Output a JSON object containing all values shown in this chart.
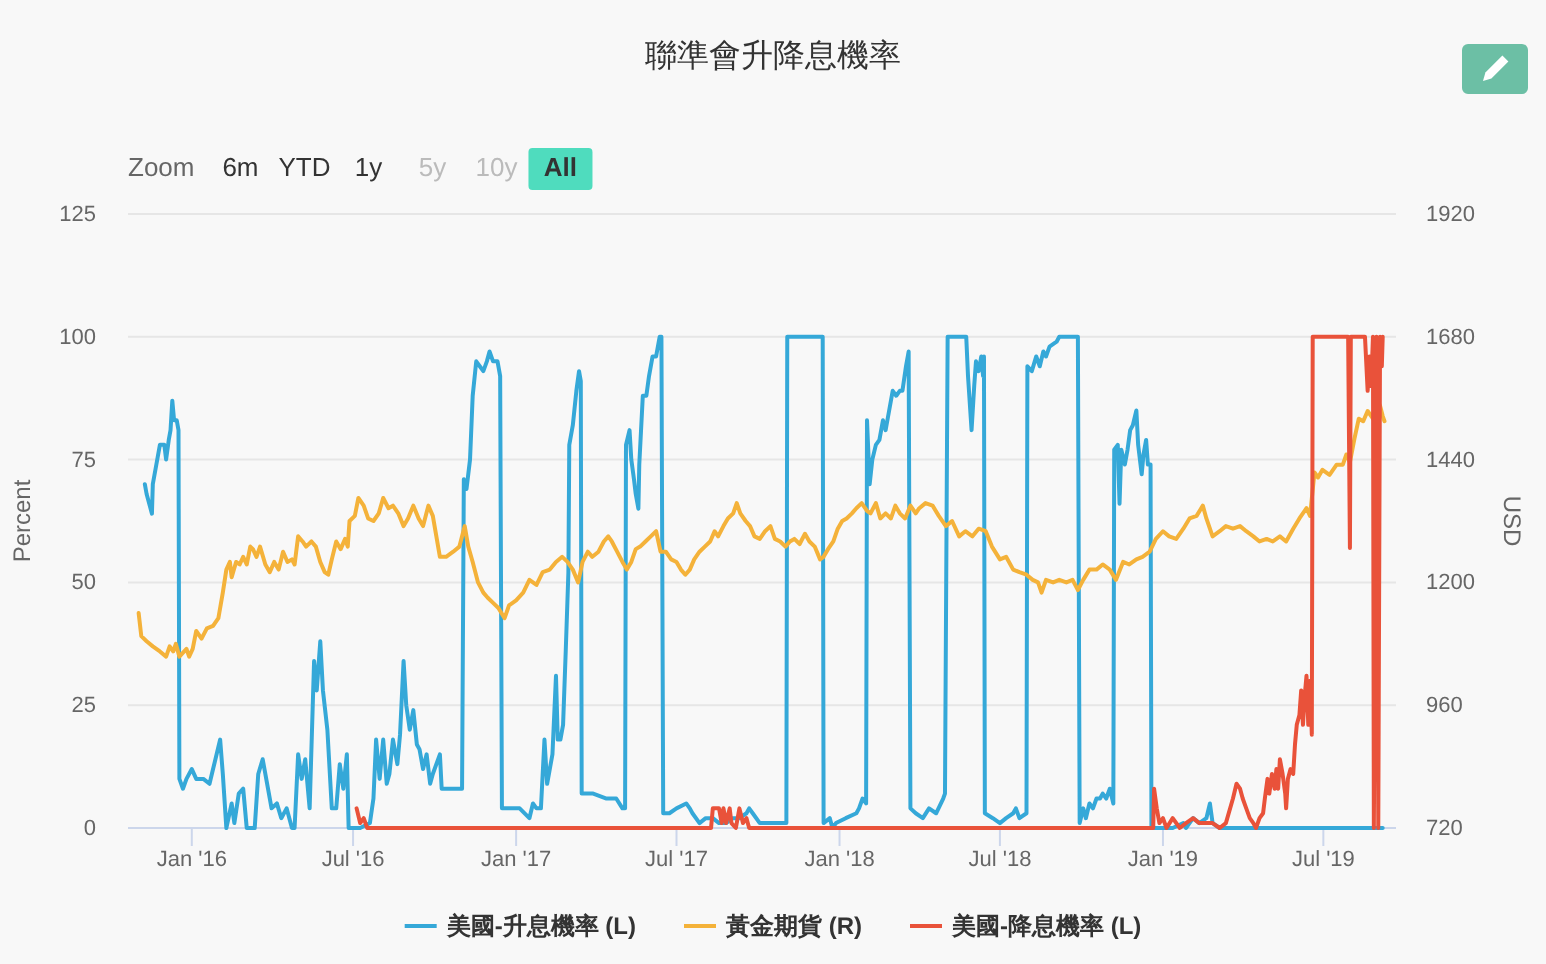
{
  "chart_data": {
    "type": "line",
    "title": "聯準會升降息機率",
    "ylabel": "Percent",
    "y2label": "USD",
    "annotations": [
      "Zoom",
      "6m",
      "YTD",
      "1y",
      "5y",
      "10y",
      "All"
    ],
    "xlim": [
      "2015-10-21",
      "2019-09-21"
    ],
    "xticks": [
      {
        "value": "2016-01-01",
        "label": "Jan '16"
      },
      {
        "value": "2016-07-01",
        "label": "Jul '16"
      },
      {
        "value": "2017-01-01",
        "label": "Jan '17"
      },
      {
        "value": "2017-07-01",
        "label": "Jul '17"
      },
      {
        "value": "2018-01-01",
        "label": "Jan '18"
      },
      {
        "value": "2018-07-01",
        "label": "Jul '18"
      },
      {
        "value": "2019-01-01",
        "label": "Jan '19"
      },
      {
        "value": "2019-07-01",
        "label": "Jul '19"
      }
    ],
    "ylim": [
      0,
      125
    ],
    "yticks": [
      0,
      25,
      50,
      75,
      100,
      125
    ],
    "y2lim": [
      720,
      1920
    ],
    "y2ticks": [
      720,
      960,
      1200,
      1440,
      1680,
      1920
    ],
    "grid": "y",
    "legend": "bottom",
    "series": [
      {
        "name": "美國-升息機率 (L)",
        "color": "#35a8d8",
        "x": [
          "2015-11-09",
          "2015-11-11",
          "2015-11-17",
          "2015-11-18",
          "2015-11-22",
          "2015-11-26",
          "2015-12-01",
          "2015-12-03",
          "2015-12-06",
          "2015-12-08",
          "2015-12-10",
          "2015-12-12",
          "2015-12-15",
          "2015-12-17",
          "2015-12-18",
          "2015-12-22",
          "2015-12-26",
          "2016-01-01",
          "2016-01-06",
          "2016-01-14",
          "2016-01-21",
          "2016-01-25",
          "2016-02-02",
          "2016-02-05",
          "2016-02-09",
          "2016-02-15",
          "2016-02-18",
          "2016-02-23",
          "2016-02-28",
          "2016-03-03",
          "2016-03-12",
          "2016-03-16",
          "2016-03-21",
          "2016-03-27",
          "2016-03-31",
          "2016-04-06",
          "2016-04-11",
          "2016-04-17",
          "2016-04-23",
          "2016-04-26",
          "2016-04-30",
          "2016-05-04",
          "2016-05-08",
          "2016-05-13",
          "2016-05-18",
          "2016-05-21",
          "2016-05-25",
          "2016-05-28",
          "2016-06-02",
          "2016-06-07",
          "2016-06-12",
          "2016-06-16",
          "2016-06-20",
          "2016-06-24",
          "2016-06-26",
          "2016-07-09",
          "2016-07-20",
          "2016-07-24",
          "2016-07-27",
          "2016-07-31",
          "2016-08-04",
          "2016-08-08",
          "2016-08-11",
          "2016-08-15",
          "2016-08-20",
          "2016-08-23",
          "2016-08-27",
          "2016-08-30",
          "2016-09-03",
          "2016-09-07",
          "2016-09-11",
          "2016-09-14",
          "2016-09-18",
          "2016-09-22",
          "2016-09-26",
          "2016-09-29",
          "2016-10-07",
          "2016-10-09",
          "2016-10-22",
          "2016-11-01",
          "2016-11-03",
          "2016-11-06",
          "2016-11-10",
          "2016-11-13",
          "2016-11-17",
          "2016-11-21",
          "2016-11-25",
          "2016-11-29",
          "2016-12-02",
          "2016-12-06",
          "2016-12-11",
          "2016-12-14",
          "2016-12-16",
          "2016-12-25",
          "2017-01-05",
          "2017-01-16",
          "2017-01-20",
          "2017-01-24",
          "2017-01-29",
          "2017-02-02",
          "2017-02-05",
          "2017-02-08",
          "2017-02-11",
          "2017-02-15",
          "2017-02-17",
          "2017-02-20",
          "2017-02-23",
          "2017-02-26",
          "2017-03-01",
          "2017-03-02",
          "2017-03-06",
          "2017-03-10",
          "2017-03-13",
          "2017-03-15",
          "2017-03-16",
          "2017-03-29",
          "2017-04-13",
          "2017-04-24",
          "2017-05-01",
          "2017-05-04",
          "2017-05-05",
          "2017-05-09",
          "2017-05-11",
          "2017-05-14",
          "2017-05-16",
          "2017-05-19",
          "2017-05-20",
          "2017-05-24",
          "2017-05-28",
          "2017-05-31",
          "2017-06-04",
          "2017-06-08",
          "2017-06-12",
          "2017-06-14",
          "2017-06-16",
          "2017-06-23",
          "2017-07-01",
          "2017-07-12",
          "2017-07-16",
          "2017-07-19",
          "2017-07-27",
          "2017-08-03",
          "2017-08-11",
          "2017-08-18",
          "2017-08-26",
          "2017-09-02",
          "2017-09-10",
          "2017-09-18",
          "2017-09-21",
          "2017-09-25",
          "2017-10-03",
          "2017-10-10",
          "2017-10-18",
          "2017-10-25",
          "2017-11-02",
          "2017-11-03",
          "2017-12-13",
          "2017-12-14",
          "2017-12-21",
          "2017-12-24",
          "2017-12-28",
          "2018-01-08",
          "2018-01-20",
          "2018-01-23",
          "2018-01-27",
          "2018-01-31",
          "2018-02-01",
          "2018-02-04",
          "2018-02-07",
          "2018-02-11",
          "2018-02-15",
          "2018-02-19",
          "2018-02-22",
          "2018-02-26",
          "2018-03-02",
          "2018-03-06",
          "2018-03-10",
          "2018-03-13",
          "2018-03-17",
          "2018-03-20",
          "2018-03-22",
          "2018-03-28",
          "2018-04-05",
          "2018-04-12",
          "2018-04-20",
          "2018-04-28",
          "2018-04-30",
          "2018-05-03",
          "2018-05-24",
          "2018-05-26",
          "2018-05-30",
          "2018-06-02",
          "2018-06-04",
          "2018-06-07",
          "2018-06-10",
          "2018-06-12",
          "2018-06-13",
          "2018-06-14",
          "2018-06-23",
          "2018-07-01",
          "2018-07-08",
          "2018-07-16",
          "2018-07-19",
          "2018-07-23",
          "2018-07-31",
          "2018-08-01",
          "2018-08-06",
          "2018-08-11",
          "2018-08-15",
          "2018-08-19",
          "2018-08-22",
          "2018-08-26",
          "2018-09-03",
          "2018-09-06",
          "2018-09-27",
          "2018-09-29",
          "2018-10-03",
          "2018-10-06",
          "2018-10-10",
          "2018-10-14",
          "2018-10-18",
          "2018-10-22",
          "2018-10-25",
          "2018-10-29",
          "2018-11-02",
          "2018-11-06",
          "2018-11-07",
          "2018-11-11",
          "2018-11-13",
          "2018-11-15",
          "2018-11-19",
          "2018-11-22",
          "2018-11-25",
          "2018-11-28",
          "2018-12-02",
          "2018-12-04",
          "2018-12-08",
          "2018-12-10",
          "2018-12-13",
          "2018-12-15",
          "2018-12-18",
          "2018-12-19",
          "2018-12-28",
          "2019-01-12",
          "2019-01-24",
          "2019-01-27",
          "2019-02-04",
          "2019-02-11",
          "2019-02-19",
          "2019-02-23",
          "2019-02-26",
          "2019-03-06",
          "2019-09-06"
        ],
        "values": [
          70,
          68,
          64,
          70,
          74,
          78,
          78,
          75,
          79,
          81,
          87,
          83,
          83,
          81,
          10,
          8,
          10,
          12,
          10,
          10,
          9,
          12,
          18,
          11,
          0,
          5,
          1,
          7,
          8,
          0,
          0,
          11,
          14,
          8,
          4,
          5,
          2,
          4,
          0,
          0,
          15,
          10,
          14,
          4,
          34,
          28,
          38,
          28,
          20,
          4,
          4,
          13,
          8,
          15,
          0,
          0,
          1,
          6,
          18,
          10,
          18,
          9,
          11,
          18,
          13,
          19,
          34,
          25,
          20,
          24,
          17,
          16,
          12,
          15,
          9,
          11,
          15,
          8,
          8,
          8,
          71,
          69,
          75,
          88,
          95,
          94,
          93,
          95,
          97,
          95,
          95,
          92,
          4,
          4,
          4,
          2,
          5,
          4,
          4,
          18,
          9,
          12,
          15,
          31,
          18,
          18,
          21,
          36,
          52,
          78,
          82,
          89,
          93,
          91,
          7,
          7,
          6,
          6,
          4,
          4,
          78,
          81,
          75,
          71,
          68,
          65,
          74,
          88,
          88,
          92,
          96,
          96,
          100,
          100,
          3,
          3,
          4,
          5,
          4,
          3,
          1,
          2,
          2,
          1,
          1,
          2,
          2,
          3,
          4,
          3,
          1,
          1,
          1,
          1,
          1,
          100,
          100,
          1,
          2,
          0,
          1,
          2,
          3,
          4,
          6,
          5,
          83,
          70,
          75,
          78,
          79,
          83,
          81,
          85,
          89,
          88,
          89,
          89,
          94,
          97,
          4,
          3,
          2,
          4,
          3,
          6,
          7,
          100,
          100,
          92,
          81,
          90,
          95,
          93,
          96,
          92,
          96,
          3,
          2,
          1,
          2,
          3,
          4,
          2,
          3,
          94,
          93,
          96,
          94,
          97,
          96,
          98,
          99,
          100,
          100,
          1,
          4,
          2,
          5,
          4,
          6,
          6,
          7,
          6,
          8,
          5,
          77,
          78,
          66,
          77,
          74,
          77,
          81,
          82,
          85,
          78,
          72,
          76,
          79,
          74,
          74,
          0,
          0,
          0,
          1,
          0,
          2,
          1,
          2,
          5,
          1,
          0,
          0
        ]
      },
      {
        "name": "黃金期貨 (R)",
        "color": "#f4b23a",
        "axis": "y2",
        "x": [
          "2015-11-02",
          "2015-11-05",
          "2015-11-11",
          "2015-11-18",
          "2015-11-26",
          "2015-12-03",
          "2015-12-07",
          "2015-12-11",
          "2015-12-14",
          "2015-12-18",
          "2015-12-26",
          "2015-12-29",
          "2016-01-02",
          "2016-01-06",
          "2016-01-12",
          "2016-01-18",
          "2016-01-25",
          "2016-01-31",
          "2016-02-05",
          "2016-02-09",
          "2016-02-13",
          "2016-02-15",
          "2016-02-20",
          "2016-02-24",
          "2016-02-28",
          "2016-03-03",
          "2016-03-07",
          "2016-03-10",
          "2016-03-14",
          "2016-03-18",
          "2016-03-24",
          "2016-03-29",
          "2016-04-03",
          "2016-04-08",
          "2016-04-13",
          "2016-04-18",
          "2016-04-23",
          "2016-04-26",
          "2016-04-30",
          "2016-05-05",
          "2016-05-09",
          "2016-05-15",
          "2016-05-20",
          "2016-05-25",
          "2016-05-30",
          "2016-06-03",
          "2016-06-07",
          "2016-06-12",
          "2016-06-17",
          "2016-06-22",
          "2016-06-25",
          "2016-06-27",
          "2016-07-03",
          "2016-07-07",
          "2016-07-13",
          "2016-07-18",
          "2016-07-24",
          "2016-07-30",
          "2016-08-04",
          "2016-08-10",
          "2016-08-15",
          "2016-08-21",
          "2016-08-27",
          "2016-09-01",
          "2016-09-07",
          "2016-09-13",
          "2016-09-18",
          "2016-09-24",
          "2016-09-29",
          "2016-10-07",
          "2016-10-14",
          "2016-10-22",
          "2016-10-29",
          "2016-11-04",
          "2016-11-08",
          "2016-11-13",
          "2016-11-19",
          "2016-11-25",
          "2016-11-30",
          "2016-12-06",
          "2016-12-12",
          "2016-12-19",
          "2016-12-24",
          "2017-01-01",
          "2017-01-09",
          "2017-01-16",
          "2017-01-24",
          "2017-01-31",
          "2017-02-08",
          "2017-02-15",
          "2017-02-22",
          "2017-02-28",
          "2017-03-06",
          "2017-03-12",
          "2017-03-17",
          "2017-03-23",
          "2017-03-28",
          "2017-04-04",
          "2017-04-10",
          "2017-04-15",
          "2017-04-19",
          "2017-04-25",
          "2017-05-01",
          "2017-05-06",
          "2017-05-11",
          "2017-05-16",
          "2017-05-21",
          "2017-05-27",
          "2017-06-02",
          "2017-06-08",
          "2017-06-13",
          "2017-06-19",
          "2017-06-25",
          "2017-07-01",
          "2017-07-06",
          "2017-07-11",
          "2017-07-16",
          "2017-07-21",
          "2017-07-27",
          "2017-08-02",
          "2017-08-08",
          "2017-08-13",
          "2017-08-17",
          "2017-08-23",
          "2017-08-28",
          "2017-09-03",
          "2017-09-07",
          "2017-09-11",
          "2017-09-17",
          "2017-09-22",
          "2017-09-27",
          "2017-10-03",
          "2017-10-09",
          "2017-10-15",
          "2017-10-20",
          "2017-10-26",
          "2017-11-01",
          "2017-11-06",
          "2017-11-11",
          "2017-11-17",
          "2017-11-23",
          "2017-11-28",
          "2017-12-04",
          "2017-12-10",
          "2017-12-14",
          "2017-12-19",
          "2017-12-25",
          "2017-12-30",
          "2018-01-04",
          "2018-01-09",
          "2018-01-15",
          "2018-01-20",
          "2018-01-26",
          "2018-02-01",
          "2018-02-05",
          "2018-02-11",
          "2018-02-16",
          "2018-02-22",
          "2018-02-28",
          "2018-03-05",
          "2018-03-10",
          "2018-03-16",
          "2018-03-22",
          "2018-03-28",
          "2018-04-01",
          "2018-04-08",
          "2018-04-16",
          "2018-04-23",
          "2018-05-01",
          "2018-05-08",
          "2018-05-16",
          "2018-05-23",
          "2018-05-31",
          "2018-06-07",
          "2018-06-15",
          "2018-06-22",
          "2018-07-01",
          "2018-07-08",
          "2018-07-16",
          "2018-07-23",
          "2018-07-31",
          "2018-08-07",
          "2018-08-13",
          "2018-08-17",
          "2018-08-22",
          "2018-08-30",
          "2018-09-06",
          "2018-09-14",
          "2018-09-21",
          "2018-09-27",
          "2018-10-03",
          "2018-10-10",
          "2018-10-18",
          "2018-10-25",
          "2018-11-02",
          "2018-11-09",
          "2018-11-17",
          "2018-11-24",
          "2018-12-02",
          "2018-12-09",
          "2018-12-17",
          "2018-12-24",
          "2019-01-01",
          "2019-01-08",
          "2019-01-16",
          "2019-01-24",
          "2019-01-31",
          "2019-02-08",
          "2019-02-15",
          "2019-02-19",
          "2019-02-26",
          "2019-03-06",
          "2019-03-13",
          "2019-03-21",
          "2019-03-29",
          "2019-04-05",
          "2019-04-13",
          "2019-04-20",
          "2019-04-28",
          "2019-05-05",
          "2019-05-13",
          "2019-05-20",
          "2019-05-28",
          "2019-06-04",
          "2019-06-12",
          "2019-06-16",
          "2019-06-21",
          "2019-06-25",
          "2019-06-30",
          "2019-07-08",
          "2019-07-16",
          "2019-07-23",
          "2019-07-27",
          "2019-07-31",
          "2019-08-05",
          "2019-08-10",
          "2019-08-15",
          "2019-08-20",
          "2019-08-26",
          "2019-08-30",
          "2019-09-03",
          "2019-09-06",
          "2019-09-08"
        ],
        "values": [
          1140,
          1095,
          1085,
          1075,
          1065,
          1055,
          1075,
          1065,
          1080,
          1055,
          1070,
          1055,
          1070,
          1105,
          1090,
          1110,
          1115,
          1130,
          1180,
          1225,
          1240,
          1210,
          1240,
          1235,
          1250,
          1235,
          1270,
          1265,
          1250,
          1270,
          1235,
          1220,
          1240,
          1225,
          1260,
          1240,
          1245,
          1235,
          1290,
          1280,
          1270,
          1280,
          1270,
          1240,
          1220,
          1215,
          1245,
          1280,
          1265,
          1285,
          1270,
          1320,
          1330,
          1365,
          1350,
          1325,
          1320,
          1335,
          1365,
          1345,
          1350,
          1335,
          1310,
          1325,
          1350,
          1325,
          1310,
          1350,
          1330,
          1250,
          1250,
          1260,
          1270,
          1310,
          1270,
          1240,
          1200,
          1180,
          1170,
          1160,
          1150,
          1130,
          1155,
          1165,
          1180,
          1205,
          1195,
          1220,
          1225,
          1240,
          1250,
          1240,
          1225,
          1200,
          1240,
          1260,
          1250,
          1260,
          1280,
          1290,
          1280,
          1260,
          1240,
          1225,
          1240,
          1265,
          1270,
          1280,
          1290,
          1300,
          1260,
          1260,
          1245,
          1240,
          1225,
          1215,
          1225,
          1245,
          1260,
          1270,
          1280,
          1300,
          1290,
          1310,
          1325,
          1335,
          1355,
          1335,
          1320,
          1310,
          1290,
          1285,
          1300,
          1310,
          1285,
          1280,
          1270,
          1280,
          1285,
          1275,
          1295,
          1280,
          1270,
          1245,
          1250,
          1265,
          1280,
          1305,
          1320,
          1325,
          1335,
          1345,
          1355,
          1340,
          1335,
          1355,
          1325,
          1335,
          1325,
          1350,
          1335,
          1325,
          1350,
          1335,
          1345,
          1355,
          1350,
          1330,
          1310,
          1320,
          1290,
          1300,
          1290,
          1305,
          1300,
          1270,
          1245,
          1250,
          1225,
          1220,
          1215,
          1205,
          1200,
          1180,
          1205,
          1200,
          1205,
          1200,
          1205,
          1185,
          1205,
          1225,
          1225,
          1235,
          1225,
          1205,
          1240,
          1235,
          1245,
          1250,
          1260,
          1285,
          1300,
          1290,
          1285,
          1305,
          1325,
          1330,
          1350,
          1325,
          1290,
          1300,
          1310,
          1305,
          1310,
          1300,
          1290,
          1280,
          1285,
          1280,
          1290,
          1280,
          1305,
          1325,
          1345,
          1330,
          1415,
          1405,
          1420,
          1410,
          1430,
          1430,
          1450,
          1435,
          1480,
          1520,
          1515,
          1535,
          1520,
          1560,
          1545,
          1525,
          1515
        ]
      },
      {
        "name": "美國-降息機率 (L)",
        "color": "#e9523a",
        "x": [
          "2016-07-05",
          "2016-07-09",
          "2016-07-13",
          "2016-07-17",
          "2017-08-09",
          "2017-08-11",
          "2017-08-18",
          "2017-08-21",
          "2017-08-23",
          "2017-08-26",
          "2017-08-30",
          "2017-09-01",
          "2017-09-06",
          "2017-09-10",
          "2017-09-14",
          "2017-09-18",
          "2017-09-21",
          "2018-12-21",
          "2018-12-22",
          "2018-12-25",
          "2018-12-28",
          "2019-01-01",
          "2019-01-05",
          "2019-01-12",
          "2019-01-20",
          "2019-01-27",
          "2019-02-04",
          "2019-02-11",
          "2019-02-19",
          "2019-02-26",
          "2019-03-06",
          "2019-03-13",
          "2019-03-21",
          "2019-03-25",
          "2019-03-29",
          "2019-04-01",
          "2019-04-05",
          "2019-04-09",
          "2019-04-13",
          "2019-04-16",
          "2019-04-20",
          "2019-04-24",
          "2019-04-26",
          "2019-04-29",
          "2019-05-01",
          "2019-05-04",
          "2019-05-07",
          "2019-05-09",
          "2019-05-11",
          "2019-05-13",
          "2019-05-16",
          "2019-05-19",
          "2019-05-20",
          "2019-05-22",
          "2019-05-25",
          "2019-05-28",
          "2019-05-30",
          "2019-06-01",
          "2019-06-04",
          "2019-06-06",
          "2019-06-08",
          "2019-06-10",
          "2019-06-12",
          "2019-06-14",
          "2019-06-16",
          "2019-06-18",
          "2019-06-19",
          "2019-07-29",
          "2019-07-31",
          "2019-08-01",
          "2019-08-17",
          "2019-08-20",
          "2019-08-22",
          "2019-08-24",
          "2019-08-26",
          "2019-08-27",
          "2019-08-30",
          "2019-09-01",
          "2019-09-03",
          "2019-09-05",
          "2019-09-06"
        ],
        "values": [
          4,
          1,
          2,
          0,
          0,
          4,
          4,
          1,
          4,
          1,
          4,
          1,
          0,
          4,
          1,
          2,
          0,
          0,
          8,
          4,
          1,
          2,
          0,
          2,
          0,
          1,
          2,
          1,
          1,
          1,
          0,
          1,
          6,
          9,
          8,
          6,
          4,
          2,
          1,
          0,
          2,
          3,
          6,
          10,
          7,
          11,
          8,
          12,
          8,
          14,
          11,
          7,
          4,
          10,
          12,
          11,
          17,
          21,
          23,
          28,
          21,
          27,
          31,
          21,
          30,
          19,
          100,
          100,
          57,
          100,
          100,
          89,
          96,
          90,
          100,
          0,
          100,
          0,
          100,
          94,
          100
        ]
      }
    ]
  }
}
